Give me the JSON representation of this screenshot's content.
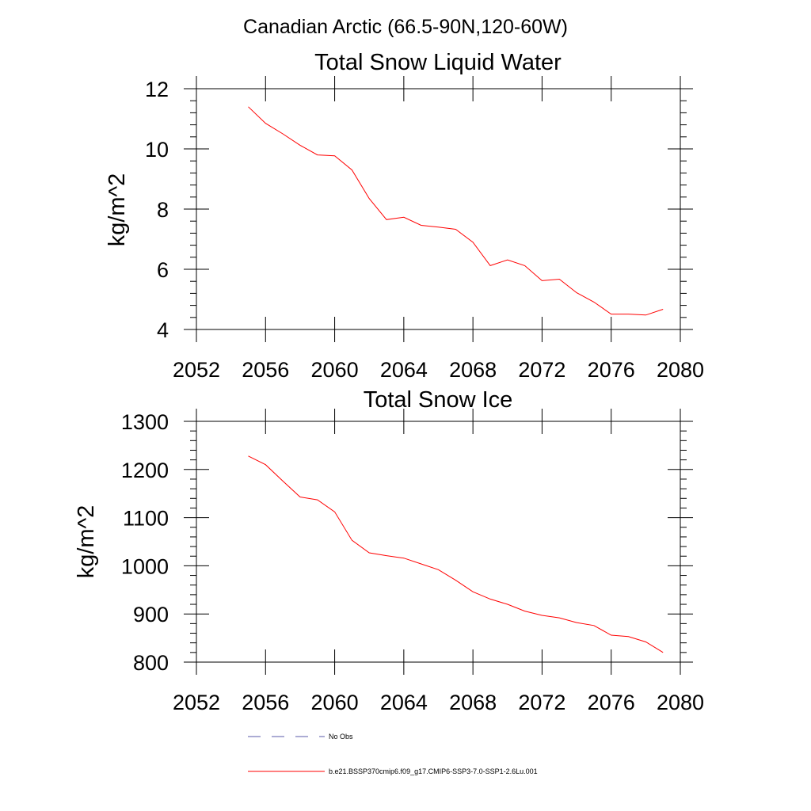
{
  "figure_title": "Canadian Arctic (66.5-90N,120-60W)",
  "chart_data": [
    {
      "type": "line",
      "title": "Total Snow Liquid Water",
      "xlabel": "",
      "ylabel": "kg/m^2",
      "xlim": [
        2052,
        2080
      ],
      "ylim": [
        4,
        12
      ],
      "xticks": [
        2052,
        2056,
        2060,
        2064,
        2068,
        2072,
        2076,
        2080
      ],
      "xtick_labels": [
        "2052",
        "2056",
        "2060",
        "2064",
        "2068",
        "2072",
        "2076",
        "2080"
      ],
      "yticks": [
        4,
        6,
        8,
        10,
        12
      ],
      "ytick_labels": [
        "4",
        "6",
        "8",
        "10",
        "12"
      ],
      "grid": false,
      "series": [
        {
          "name": "b.e21.BSSP370cmip6.f09_g17.CMIP6-SSP3-7.0-SSP1-2.6Lu.001",
          "color": "#ff0000",
          "x": [
            2055,
            2056,
            2057,
            2058,
            2059,
            2060,
            2061,
            2062,
            2063,
            2064,
            2065,
            2066,
            2067,
            2068,
            2069,
            2070,
            2071,
            2072,
            2073,
            2074,
            2075,
            2076,
            2077,
            2078,
            2079
          ],
          "y": [
            11.4,
            10.85,
            10.5,
            10.12,
            9.8,
            9.77,
            9.3,
            8.35,
            7.65,
            7.73,
            7.46,
            7.4,
            7.33,
            6.9,
            6.12,
            6.31,
            6.12,
            5.62,
            5.67,
            5.22,
            4.91,
            4.51,
            4.51,
            4.48,
            4.67
          ]
        }
      ]
    },
    {
      "type": "line",
      "title": "Total Snow Ice",
      "xlabel": "",
      "ylabel": "kg/m^2",
      "xlim": [
        2052,
        2080
      ],
      "ylim": [
        800,
        1300
      ],
      "xticks": [
        2052,
        2056,
        2060,
        2064,
        2068,
        2072,
        2076,
        2080
      ],
      "xtick_labels": [
        "2052",
        "2056",
        "2060",
        "2064",
        "2068",
        "2072",
        "2076",
        "2080"
      ],
      "yticks": [
        800,
        900,
        1000,
        1100,
        1200,
        1300
      ],
      "ytick_labels": [
        "800",
        "900",
        "1000",
        "1100",
        "1200",
        "1300"
      ],
      "grid": false,
      "series": [
        {
          "name": "b.e21.BSSP370cmip6.f09_g17.CMIP6-SSP3-7.0-SSP1-2.6Lu.001",
          "color": "#ff0000",
          "x": [
            2055,
            2056,
            2057,
            2058,
            2059,
            2060,
            2061,
            2062,
            2063,
            2064,
            2065,
            2066,
            2067,
            2068,
            2069,
            2070,
            2071,
            2072,
            2073,
            2074,
            2075,
            2076,
            2077,
            2078,
            2079
          ],
          "y": [
            1228,
            1210,
            1176,
            1143,
            1137,
            1112,
            1053,
            1027,
            1021,
            1016,
            1004,
            992,
            970,
            946,
            931,
            920,
            906,
            897,
            892,
            882,
            876,
            856,
            853,
            842,
            820
          ]
        }
      ]
    }
  ],
  "legend": {
    "placement": "bottom",
    "entries": [
      {
        "label": "No Obs",
        "color": "#5a5aa8",
        "style": "dashed"
      },
      {
        "label": "b.e21.BSSP370cmip6.f09_g17.CMIP6-SSP3-7.0-SSP1-2.6Lu.001",
        "color": "#ff0000",
        "style": "solid"
      }
    ]
  }
}
